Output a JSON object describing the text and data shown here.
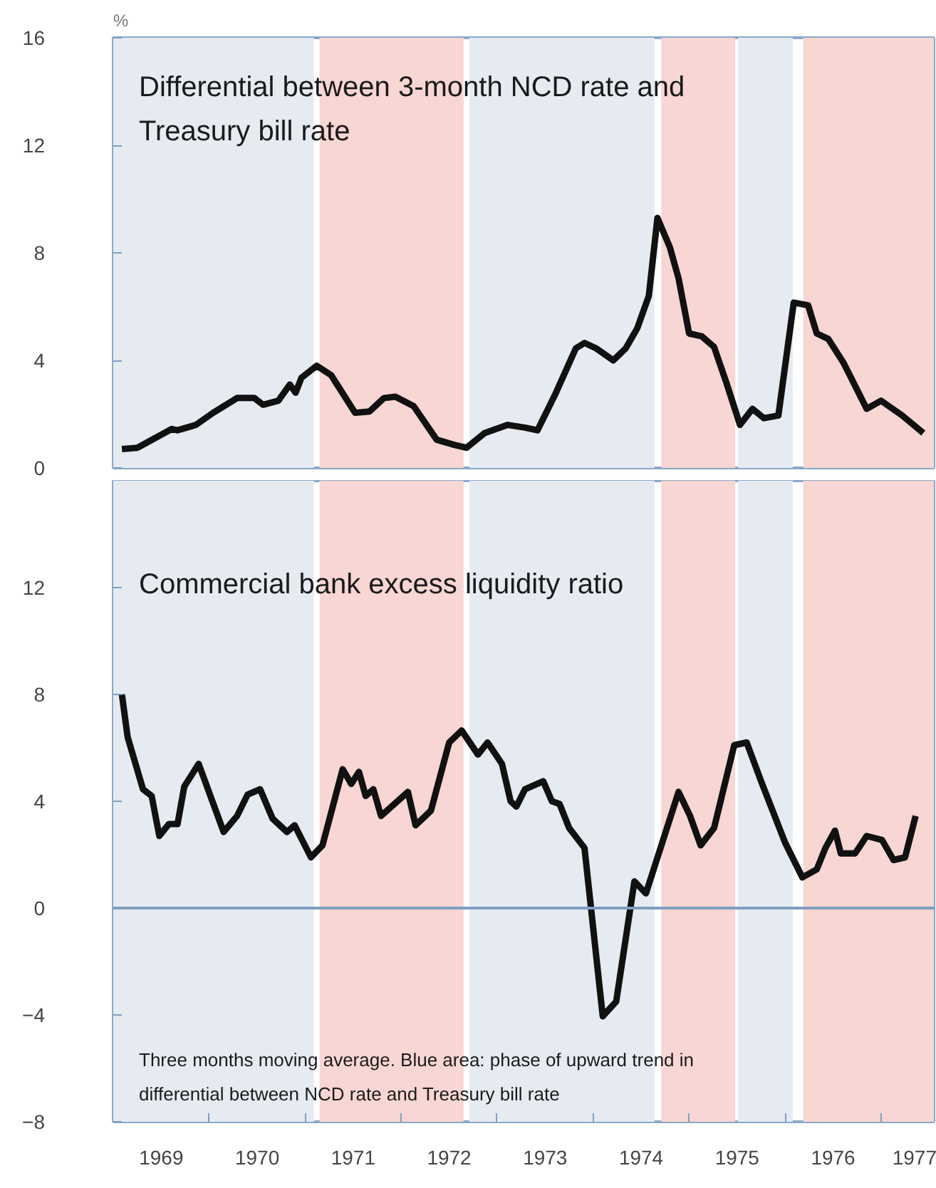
{
  "chart_data": [
    {
      "type": "line",
      "title": "Differential between 3-month NCD rate and Treasury bill rate",
      "ylabel": "%",
      "xlim": [
        1969,
        1977.55
      ],
      "ylim": [
        0,
        16
      ],
      "yticks": [
        0,
        4,
        8,
        12,
        16
      ],
      "tick_labels": "y",
      "grid": false,
      "bands": [
        {
          "axis": "x",
          "from": 1969.0,
          "to": 1971.09,
          "color": "#e6ebf1",
          "label": null
        },
        {
          "axis": "x",
          "from": 1971.15,
          "to": 1972.65,
          "color": "#f8d6d3",
          "label": null
        },
        {
          "axis": "x",
          "from": 1972.71,
          "to": 1974.64,
          "color": "#e6ebf1",
          "label": null
        },
        {
          "axis": "x",
          "from": 1974.71,
          "to": 1975.48,
          "color": "#f8d6d3",
          "label": null
        },
        {
          "axis": "x",
          "from": 1975.51,
          "to": 1976.08,
          "color": "#e6ebf1",
          "label": null
        },
        {
          "axis": "x",
          "from": 1976.19,
          "to": 1977.55,
          "color": "#f8d6d3",
          "label": null
        }
      ],
      "series": [
        {
          "color": "#111111",
          "x": [
            1969.09,
            1969.25,
            1969.43,
            1969.61,
            1969.67,
            1969.86,
            1970.04,
            1970.29,
            1970.47,
            1970.56,
            1970.72,
            1970.84,
            1970.9,
            1970.96,
            1971.12,
            1971.27,
            1971.52,
            1971.67,
            1971.82,
            1971.94,
            1972.13,
            1972.37,
            1972.56,
            1972.68,
            1972.87,
            1973.11,
            1973.29,
            1973.42,
            1973.6,
            1973.82,
            1973.91,
            1974.03,
            1974.21,
            1974.34,
            1974.46,
            1974.58,
            1974.67,
            1974.8,
            1974.89,
            1975.0,
            1975.13,
            1975.26,
            1975.39,
            1975.53,
            1975.66,
            1975.78,
            1975.93,
            1976.09,
            1976.24,
            1976.33,
            1976.45,
            1976.61,
            1976.85,
            1977.0,
            1977.22,
            1977.44
          ],
          "values": [
            0.7,
            0.75,
            1.1,
            1.45,
            1.4,
            1.6,
            2.05,
            2.6,
            2.6,
            2.35,
            2.5,
            3.1,
            2.8,
            3.35,
            3.8,
            3.45,
            2.05,
            2.1,
            2.6,
            2.65,
            2.3,
            1.05,
            0.85,
            0.75,
            1.3,
            1.6,
            1.5,
            1.4,
            2.7,
            4.45,
            4.65,
            4.45,
            4.0,
            4.45,
            5.2,
            6.4,
            9.3,
            8.2,
            7.05,
            5.0,
            4.9,
            4.5,
            3.15,
            1.6,
            2.2,
            1.85,
            1.95,
            6.15,
            6.05,
            5.0,
            4.8,
            3.9,
            2.2,
            2.5,
            1.95,
            1.3
          ]
        }
      ]
    },
    {
      "type": "line",
      "title": "Commercial bank excess liquidity ratio",
      "annotations": [
        "Three months moving average. Blue area: phase of upward trend in differential between NCD rate and Treasury bill rate"
      ],
      "xlim": [
        1969,
        1977.55
      ],
      "xticks": [
        {
          "value": 1969.5,
          "label": "1969"
        },
        {
          "value": 1970,
          "label": null
        },
        {
          "value": 1970.5,
          "label": "1970"
        },
        {
          "value": 1971,
          "label": null
        },
        {
          "value": 1971.5,
          "label": "1971"
        },
        {
          "value": 1972,
          "label": null
        },
        {
          "value": 1972.5,
          "label": "1972"
        },
        {
          "value": 1973,
          "label": null
        },
        {
          "value": 1973.5,
          "label": "1973"
        },
        {
          "value": 1974,
          "label": null
        },
        {
          "value": 1974.5,
          "label": "1974"
        },
        {
          "value": 1975,
          "label": null
        },
        {
          "value": 1975.5,
          "label": "1975"
        },
        {
          "value": 1976,
          "label": null
        },
        {
          "value": 1976.5,
          "label": "1976"
        },
        {
          "value": 1977,
          "label": null
        },
        {
          "value": 1977.4,
          "label": "1977"
        }
      ],
      "ylim": [
        -8,
        16
      ],
      "yticks": [
        -8,
        -4,
        0,
        4,
        8,
        12
      ],
      "grid": false,
      "ref_lines": [
        {
          "axis": "y",
          "value": 0,
          "color": "#7f9fc0",
          "label": null
        }
      ],
      "bands": [
        {
          "axis": "x",
          "from": 1969.0,
          "to": 1971.09,
          "color": "#e6ebf1",
          "label": null
        },
        {
          "axis": "x",
          "from": 1971.15,
          "to": 1972.65,
          "color": "#f8d6d3",
          "label": null
        },
        {
          "axis": "x",
          "from": 1972.71,
          "to": 1974.64,
          "color": "#e6ebf1",
          "label": null
        },
        {
          "axis": "x",
          "from": 1974.71,
          "to": 1975.48,
          "color": "#f8d6d3",
          "label": null
        },
        {
          "axis": "x",
          "from": 1975.51,
          "to": 1976.08,
          "color": "#e6ebf1",
          "label": null
        },
        {
          "axis": "x",
          "from": 1976.19,
          "to": 1977.55,
          "color": "#f8d6d3",
          "label": null
        }
      ],
      "series": [
        {
          "color": "#111111",
          "x": [
            1969.09,
            1969.15,
            1969.31,
            1969.4,
            1969.48,
            1969.58,
            1969.67,
            1969.74,
            1969.89,
            1970.15,
            1970.29,
            1970.4,
            1970.53,
            1970.66,
            1970.81,
            1970.89,
            1971.06,
            1971.18,
            1971.39,
            1971.48,
            1971.56,
            1971.63,
            1971.71,
            1971.79,
            1972.07,
            1972.15,
            1972.31,
            1972.5,
            1972.63,
            1972.8,
            1972.9,
            1973.05,
            1973.14,
            1973.2,
            1973.29,
            1973.48,
            1973.57,
            1973.65,
            1973.75,
            1973.91,
            1974.1,
            1974.24,
            1974.43,
            1974.55,
            1974.89,
            1975.01,
            1975.12,
            1975.26,
            1975.47,
            1975.6,
            1975.75,
            1976.0,
            1976.18,
            1976.33,
            1976.42,
            1976.52,
            1976.58,
            1976.73,
            1976.85,
            1977.01,
            1977.13,
            1977.25,
            1977.36
          ],
          "values": [
            8.0,
            6.4,
            4.45,
            4.2,
            2.7,
            3.15,
            3.15,
            4.55,
            5.4,
            2.85,
            3.45,
            4.25,
            4.45,
            3.35,
            2.85,
            3.1,
            1.9,
            2.35,
            5.2,
            4.65,
            5.1,
            4.2,
            4.45,
            3.45,
            4.35,
            3.1,
            3.65,
            6.2,
            6.65,
            5.75,
            6.2,
            5.4,
            4.0,
            3.8,
            4.45,
            4.75,
            4.0,
            3.9,
            3.0,
            2.25,
            -4.05,
            -3.5,
            1.0,
            0.55,
            4.35,
            3.45,
            2.35,
            3.0,
            6.1,
            6.2,
            4.75,
            2.45,
            1.15,
            1.45,
            2.25,
            2.9,
            2.05,
            2.05,
            2.7,
            2.55,
            1.8,
            1.9,
            3.45
          ]
        }
      ]
    }
  ]
}
